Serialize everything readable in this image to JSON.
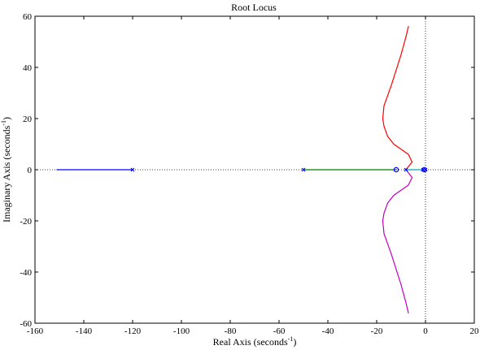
{
  "chart_data": {
    "type": "line",
    "title": "Root Locus",
    "xlabel": {
      "prefix": "Real Axis (seconds",
      "sup": "-1",
      "suffix": ")"
    },
    "ylabel": {
      "prefix": "Imaginary Axis (seconds",
      "sup": "-1",
      "suffix": ")"
    },
    "xlim": [
      -160,
      20
    ],
    "ylim": [
      -60,
      60
    ],
    "xticks": [
      -160,
      -140,
      -120,
      -100,
      -80,
      -60,
      -40,
      -20,
      0,
      20
    ],
    "yticks": [
      -60,
      -40,
      -20,
      0,
      20,
      40,
      60
    ],
    "grid": false,
    "reference_lines": {
      "x": 0,
      "y": 0,
      "style": "dotted"
    },
    "poles": [
      {
        "x": -120,
        "y": 0
      },
      {
        "x": -50,
        "y": 0
      },
      {
        "x": -8,
        "y": 0
      },
      {
        "x": -1,
        "y": 0
      },
      {
        "x": 0,
        "y": 0
      }
    ],
    "zeros": [
      {
        "x": -12,
        "y": 0
      },
      {
        "x": -0.5,
        "y": 0
      }
    ],
    "marker_color": "#0000ff",
    "series": [
      {
        "color": "#0000ff",
        "x": [
          -120,
          -130,
          -140,
          -151
        ],
        "y": [
          0,
          0,
          0,
          0
        ]
      },
      {
        "color": "#008000",
        "x": [
          -50,
          -40,
          -30,
          -20,
          -12
        ],
        "y": [
          0,
          0,
          0,
          0,
          0
        ]
      },
      {
        "color": "#ff0000",
        "x": [
          -8,
          -5.5,
          -7,
          -10,
          -13,
          -15.5,
          -17,
          -17.5,
          -17,
          -15.5,
          -14,
          -12,
          -10,
          -8,
          -7
        ],
        "y": [
          0,
          3,
          6,
          8,
          10,
          13,
          17,
          20,
          25,
          29,
          33,
          39,
          45,
          52,
          56
        ]
      },
      {
        "color": "#c000c0",
        "x": [
          -8,
          -5.5,
          -7,
          -10,
          -13,
          -15.5,
          -17,
          -17.5,
          -17,
          -15.5,
          -14,
          -12,
          -10,
          -8,
          -7
        ],
        "y": [
          0,
          -3,
          -6,
          -8,
          -10,
          -13,
          -17,
          -20,
          -25,
          -29,
          -33,
          -39,
          -45,
          -52,
          -56
        ]
      },
      {
        "color": "#00aaaa",
        "x": [
          -1,
          -2,
          -3.5,
          -6,
          -8
        ],
        "y": [
          0,
          0,
          0,
          0,
          0
        ]
      }
    ]
  }
}
